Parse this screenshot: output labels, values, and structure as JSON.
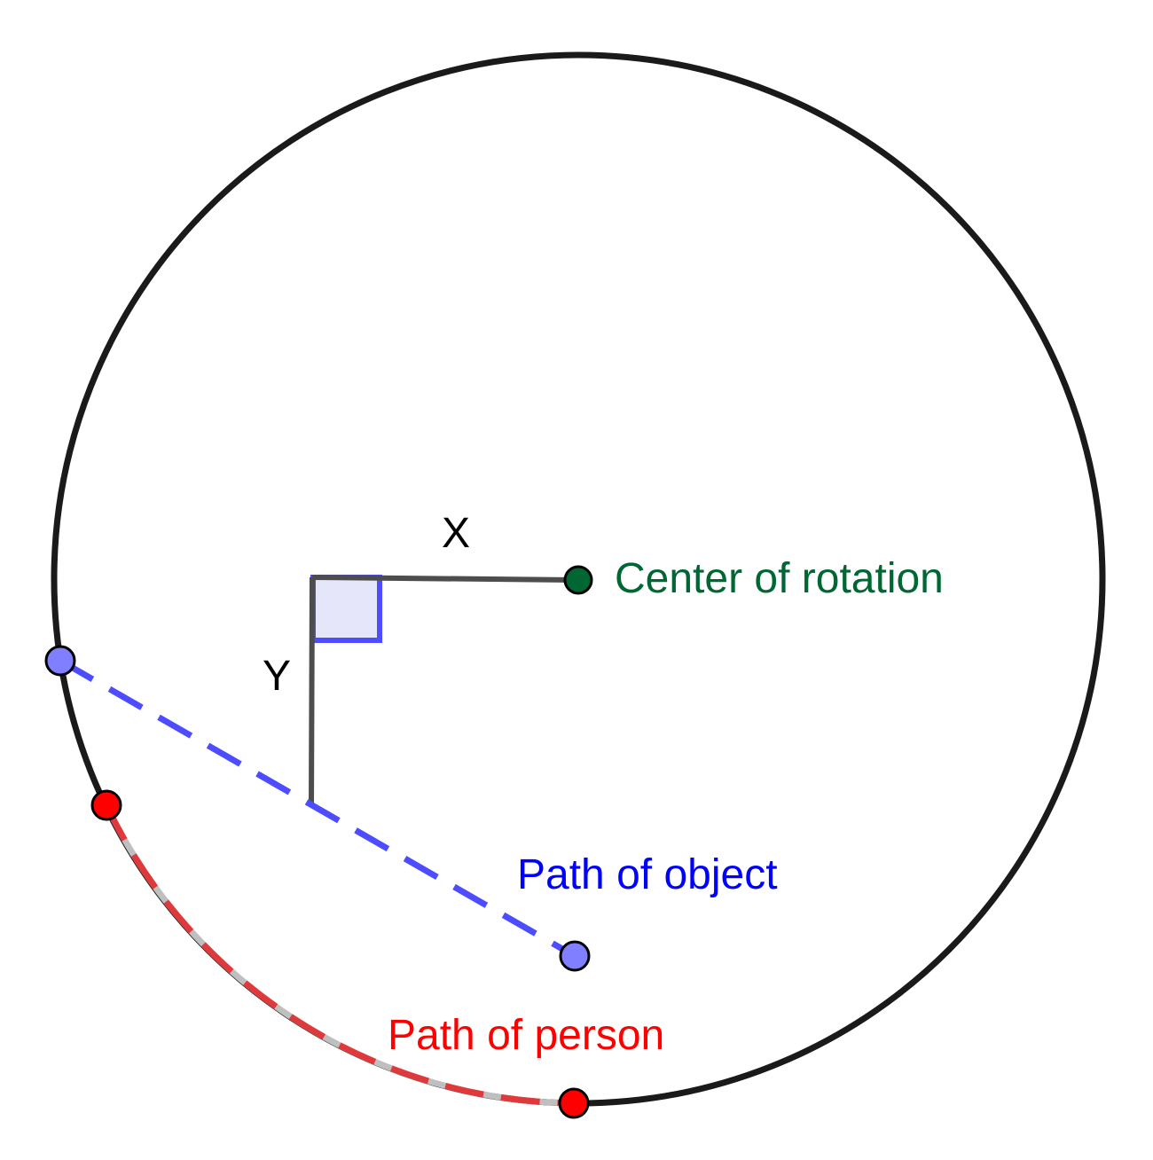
{
  "labels": {
    "x": "X",
    "y": "Y",
    "center": "Center of rotation",
    "object_path": "Path of object",
    "person_path": "Path of person"
  },
  "colors": {
    "circle": "#1a1a1a",
    "segment": "#4d4d4d",
    "right_angle_fill": "#e6e6fa",
    "right_angle_stroke": "#4d4dff",
    "object_path": "#4d4dff",
    "object_point": "#7f7fff",
    "person_path": "#e0393c",
    "person_path_underlay": "#bfbfbf",
    "person_point": "#ff0000",
    "center_point": "#006633",
    "center_label": "#006633",
    "object_label": "#0000ff",
    "person_label": "#ff0000"
  }
}
